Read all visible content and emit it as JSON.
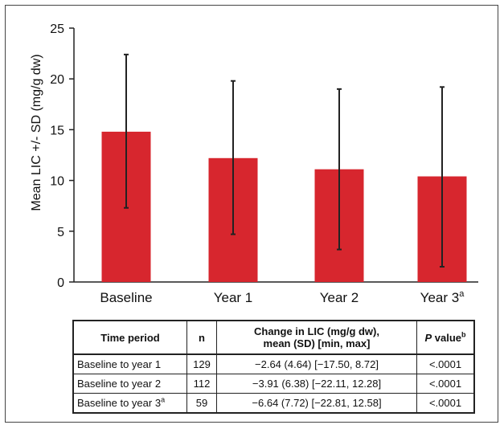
{
  "chart_data": {
    "type": "bar",
    "title": "",
    "xlabel": "",
    "ylabel": "Mean LIC +/- SD (mg/g dw)",
    "ylim": [
      0,
      25
    ],
    "yticks": [
      0,
      5,
      10,
      15,
      20,
      25
    ],
    "categories": [
      "Baseline",
      "Year 1",
      "Year 2",
      "Year 3"
    ],
    "category_superscripts": [
      "",
      "",
      "",
      "a"
    ],
    "values": [
      14.8,
      12.2,
      11.1,
      10.4
    ],
    "error_low": [
      7.3,
      4.7,
      3.2,
      1.5
    ],
    "error_high": [
      22.4,
      19.8,
      19.0,
      19.2
    ],
    "bar_color": "#d7262e",
    "error_color": "#222222",
    "grid": false,
    "legend": "none"
  },
  "table": {
    "headers": {
      "time_period": "Time period",
      "n": "n",
      "change_line1": "Change in LIC (mg/g dw),",
      "change_line2": "mean (SD) [min, max]",
      "p_italic": "P",
      "p_rest": " value",
      "p_sup": "b"
    },
    "rows": [
      {
        "period": "Baseline to year 1",
        "sup": "",
        "n": "129",
        "change": "−2.64 (4.64) [−17.50, 8.72]",
        "p": "<.0001"
      },
      {
        "period": "Baseline to year 2",
        "sup": "",
        "n": "112",
        "change": "−3.91 (6.38) [−22.11, 12.28]",
        "p": "<.0001"
      },
      {
        "period": "Baseline to year 3",
        "sup": "a",
        "n": "59",
        "change": "−6.64 (7.72) [−22.81, 12.58]",
        "p": "<.0001"
      }
    ]
  }
}
